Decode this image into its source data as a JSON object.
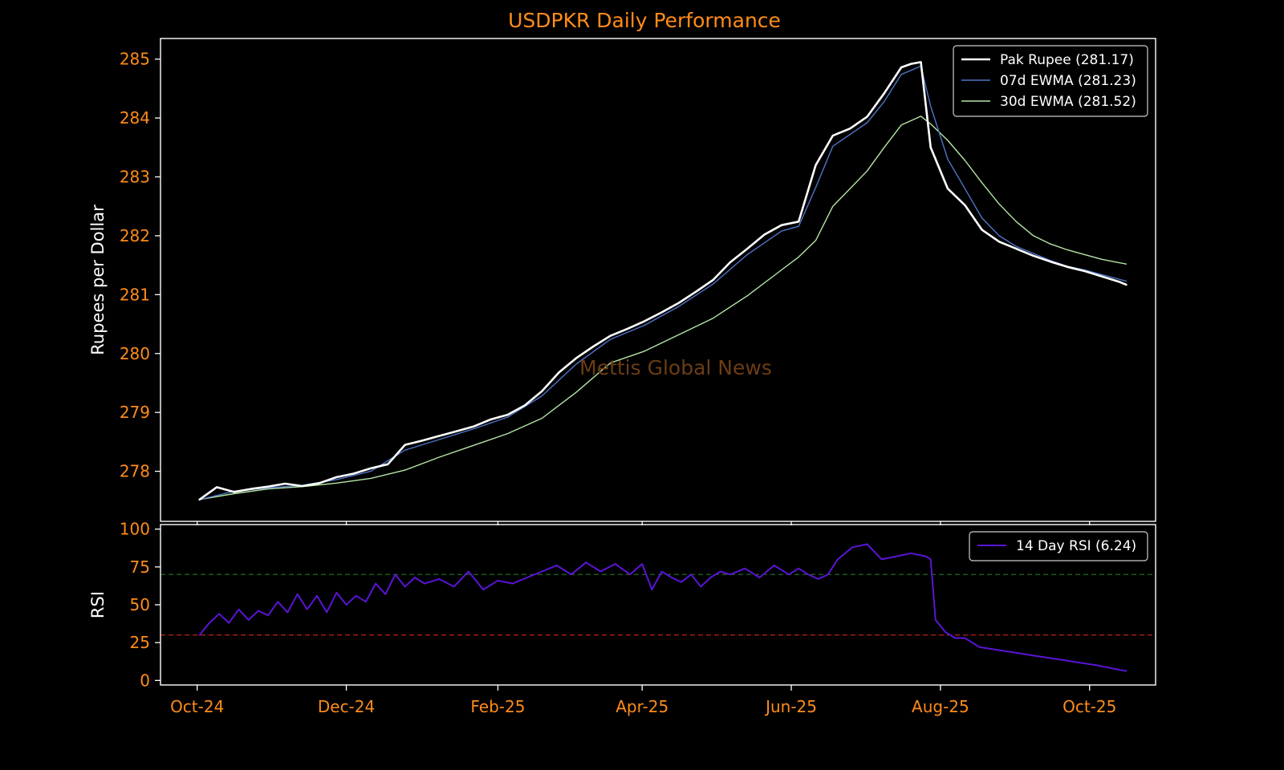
{
  "chart_data": {
    "title": "USDPKR Daily Performance",
    "watermark": "Mettis Global News",
    "x_ticks": [
      "Oct-24",
      "Dec-24",
      "Feb-25",
      "Apr-25",
      "Jun-25",
      "Aug-25",
      "Oct-25"
    ],
    "x_tick_dates": [
      "2024-10-01",
      "2024-12-01",
      "2025-02-01",
      "2025-04-01",
      "2025-06-01",
      "2025-08-01",
      "2025-10-01"
    ],
    "x_range": [
      "2024-09-16",
      "2025-10-28"
    ],
    "colors": {
      "background": "#000000",
      "text_accent": "#ff8c1a",
      "frame": "#ffffff",
      "price": "#ffffff",
      "ewma7": "#4f74c8",
      "ewma30": "#b5e6a5",
      "rsi": "#5a14d6",
      "overbought": "#1e6b1e",
      "oversold": "#c02020"
    },
    "price_panel": {
      "type": "line",
      "ylabel": "Rupees per Dollar",
      "ylim": [
        277.15,
        285.35
      ],
      "yticks": [
        278,
        279,
        280,
        281,
        282,
        283,
        284,
        285
      ],
      "legend_position": "top-right",
      "series": [
        {
          "name": "Pak Rupee (281.17)",
          "x": [
            "2024-10-02",
            "2024-10-09",
            "2024-10-16",
            "2024-10-23",
            "2024-10-30",
            "2024-11-06",
            "2024-11-13",
            "2024-11-20",
            "2024-11-27",
            "2024-12-04",
            "2024-12-11",
            "2024-12-18",
            "2024-12-25",
            "2025-01-01",
            "2025-01-08",
            "2025-01-15",
            "2025-01-22",
            "2025-01-29",
            "2025-02-05",
            "2025-02-12",
            "2025-02-19",
            "2025-02-26",
            "2025-03-05",
            "2025-03-12",
            "2025-03-19",
            "2025-03-26",
            "2025-04-02",
            "2025-04-09",
            "2025-04-16",
            "2025-04-23",
            "2025-04-30",
            "2025-05-07",
            "2025-05-14",
            "2025-05-21",
            "2025-05-28",
            "2025-06-04",
            "2025-06-11",
            "2025-06-18",
            "2025-06-25",
            "2025-07-02",
            "2025-07-09",
            "2025-07-16",
            "2025-07-20",
            "2025-07-24",
            "2025-07-28",
            "2025-08-04",
            "2025-08-11",
            "2025-08-18",
            "2025-08-25",
            "2025-09-01",
            "2025-09-08",
            "2025-09-15",
            "2025-09-22",
            "2025-09-29",
            "2025-10-06",
            "2025-10-13",
            "2025-10-16"
          ],
          "y": [
            277.52,
            277.73,
            277.65,
            277.7,
            277.74,
            277.79,
            277.75,
            277.8,
            277.9,
            277.96,
            278.05,
            278.12,
            278.45,
            278.52,
            278.6,
            278.68,
            278.76,
            278.88,
            278.96,
            279.12,
            279.36,
            279.68,
            279.92,
            280.12,
            280.3,
            280.42,
            280.55,
            280.7,
            280.86,
            281.05,
            281.25,
            281.55,
            281.78,
            282.02,
            282.18,
            282.24,
            283.2,
            283.7,
            283.82,
            284.02,
            284.42,
            284.86,
            284.92,
            284.95,
            283.5,
            282.8,
            282.52,
            282.1,
            281.9,
            281.78,
            281.66,
            281.56,
            281.47,
            281.4,
            281.31,
            281.22,
            281.17
          ],
          "color": "#ffffff",
          "width": 2.6
        },
        {
          "name": "07d EWMA (281.23)",
          "x": [
            "2024-10-02",
            "2024-10-16",
            "2024-10-30",
            "2024-11-13",
            "2024-11-27",
            "2024-12-11",
            "2024-12-25",
            "2025-01-08",
            "2025-01-22",
            "2025-02-05",
            "2025-02-19",
            "2025-03-05",
            "2025-03-19",
            "2025-04-02",
            "2025-04-16",
            "2025-04-30",
            "2025-05-14",
            "2025-05-28",
            "2025-06-04",
            "2025-06-11",
            "2025-06-18",
            "2025-06-25",
            "2025-07-02",
            "2025-07-09",
            "2025-07-16",
            "2025-07-24",
            "2025-07-28",
            "2025-08-04",
            "2025-08-11",
            "2025-08-18",
            "2025-08-25",
            "2025-09-01",
            "2025-09-08",
            "2025-09-15",
            "2025-09-22",
            "2025-09-29",
            "2025-10-06",
            "2025-10-16"
          ],
          "y": [
            277.52,
            277.66,
            277.72,
            277.76,
            277.86,
            278.0,
            278.36,
            278.54,
            278.72,
            278.92,
            279.28,
            279.82,
            280.24,
            280.48,
            280.8,
            281.18,
            281.68,
            282.08,
            282.16,
            282.82,
            283.52,
            283.72,
            283.92,
            284.28,
            284.74,
            284.88,
            284.2,
            283.3,
            282.8,
            282.3,
            282.0,
            281.82,
            281.7,
            281.58,
            281.48,
            281.42,
            281.34,
            281.23
          ],
          "color": "#4f74c8",
          "width": 1.4
        },
        {
          "name": "30d EWMA (281.52)",
          "x": [
            "2024-10-02",
            "2024-10-16",
            "2024-10-30",
            "2024-11-13",
            "2024-11-27",
            "2024-12-11",
            "2024-12-25",
            "2025-01-08",
            "2025-01-22",
            "2025-02-05",
            "2025-02-19",
            "2025-03-05",
            "2025-03-19",
            "2025-04-02",
            "2025-04-16",
            "2025-04-30",
            "2025-05-14",
            "2025-05-28",
            "2025-06-04",
            "2025-06-11",
            "2025-06-18",
            "2025-06-25",
            "2025-07-02",
            "2025-07-09",
            "2025-07-16",
            "2025-07-24",
            "2025-07-28",
            "2025-08-04",
            "2025-08-11",
            "2025-08-18",
            "2025-08-25",
            "2025-09-01",
            "2025-09-08",
            "2025-09-15",
            "2025-09-22",
            "2025-09-29",
            "2025-10-06",
            "2025-10-16"
          ],
          "y": [
            277.52,
            277.62,
            277.7,
            277.74,
            277.8,
            277.88,
            278.02,
            278.24,
            278.44,
            278.64,
            278.9,
            279.34,
            279.84,
            280.04,
            280.32,
            280.6,
            280.98,
            281.42,
            281.64,
            281.92,
            282.5,
            282.8,
            283.1,
            283.5,
            283.88,
            284.03,
            283.9,
            283.62,
            283.28,
            282.9,
            282.54,
            282.24,
            282.0,
            281.86,
            281.76,
            281.68,
            281.6,
            281.52
          ],
          "color": "#b5e6a5",
          "width": 1.4
        }
      ]
    },
    "rsi_panel": {
      "type": "line",
      "ylabel": "RSI",
      "ylim": [
        -3,
        103
      ],
      "yticks": [
        0,
        25,
        50,
        75,
        100
      ],
      "overbought": 70,
      "oversold": 30,
      "legend_position": "top-right",
      "series": [
        {
          "name": "14 Day RSI (6.24)",
          "x": [
            "2024-10-02",
            "2024-10-06",
            "2024-10-10",
            "2024-10-14",
            "2024-10-18",
            "2024-10-22",
            "2024-10-26",
            "2024-10-30",
            "2024-11-03",
            "2024-11-07",
            "2024-11-11",
            "2024-11-15",
            "2024-11-19",
            "2024-11-23",
            "2024-11-27",
            "2024-12-01",
            "2024-12-05",
            "2024-12-09",
            "2024-12-13",
            "2024-12-17",
            "2024-12-21",
            "2024-12-25",
            "2024-12-29",
            "2025-01-02",
            "2025-01-08",
            "2025-01-14",
            "2025-01-20",
            "2025-01-26",
            "2025-02-01",
            "2025-02-07",
            "2025-02-13",
            "2025-02-19",
            "2025-02-25",
            "2025-03-03",
            "2025-03-09",
            "2025-03-15",
            "2025-03-21",
            "2025-03-27",
            "2025-04-01",
            "2025-04-05",
            "2025-04-09",
            "2025-04-13",
            "2025-04-17",
            "2025-04-21",
            "2025-04-25",
            "2025-04-29",
            "2025-05-03",
            "2025-05-07",
            "2025-05-13",
            "2025-05-19",
            "2025-05-25",
            "2025-05-31",
            "2025-06-04",
            "2025-06-08",
            "2025-06-12",
            "2025-06-16",
            "2025-06-20",
            "2025-06-26",
            "2025-07-02",
            "2025-07-08",
            "2025-07-14",
            "2025-07-20",
            "2025-07-26",
            "2025-07-28",
            "2025-07-30",
            "2025-08-03",
            "2025-08-07",
            "2025-08-11",
            "2025-08-17",
            "2025-08-25",
            "2025-09-02",
            "2025-09-10",
            "2025-09-18",
            "2025-09-26",
            "2025-10-04",
            "2025-10-10",
            "2025-10-16"
          ],
          "y": [
            30,
            38,
            44,
            38,
            47,
            40,
            46,
            43,
            52,
            45,
            57,
            47,
            56,
            45,
            58,
            50,
            56,
            52,
            64,
            57,
            70,
            62,
            68,
            64,
            67,
            62,
            72,
            60,
            66,
            64,
            68,
            72,
            76,
            70,
            78,
            72,
            77,
            70,
            77,
            60,
            72,
            68,
            65,
            70,
            62,
            68,
            72,
            70,
            74,
            68,
            76,
            70,
            74,
            70,
            67,
            70,
            80,
            88,
            90,
            80,
            82,
            84,
            82,
            80,
            40,
            32,
            28,
            28,
            22,
            20,
            18,
            16,
            14,
            12,
            10,
            8,
            6.24
          ],
          "color": "#5a14d6",
          "width": 2
        }
      ]
    }
  }
}
